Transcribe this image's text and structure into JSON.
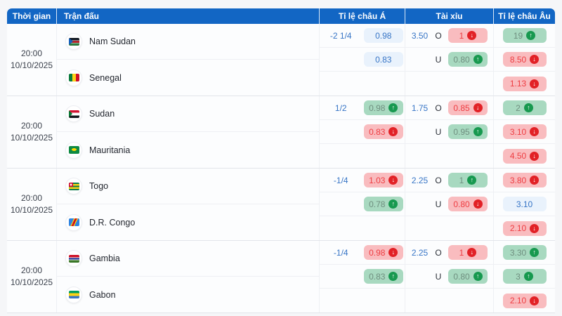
{
  "header": {
    "time": "Thời gian",
    "match": "Trận đấu",
    "asian": "Tỉ lệ châu Á",
    "over_under": "Tài xỉu",
    "euro": "Tỉ lệ châu Âu"
  },
  "labels": {
    "over": "O",
    "under": "U"
  },
  "colors": {
    "header_bg": "#1266c4",
    "odds_text_blue": "#3775c6",
    "badge_blue_bg": "#e9f2fc",
    "badge_green_bg": "#a8d9c0",
    "badge_red_bg": "#f9bcbf",
    "trend_up_circle": "#17994f",
    "trend_down_circle": "#e22126"
  },
  "matches": [
    {
      "time_line1": "20:00",
      "time_line2": "10/10/2025",
      "home": {
        "name": "Nam Sudan",
        "flag": "ssd"
      },
      "away": {
        "name": "Senegal",
        "flag": "sen"
      },
      "asian": {
        "handicap": "-2 1/4",
        "row1": {
          "value": "0.98",
          "state": "blue"
        },
        "row2": {
          "value": "0.83",
          "state": "blue"
        }
      },
      "over_under": {
        "total": "3.50",
        "over": {
          "value": "1",
          "state": "red-down"
        },
        "under": {
          "value": "0.80",
          "state": "green-up"
        }
      },
      "euro": {
        "row1": {
          "value": "19",
          "state": "green-up"
        },
        "row2": {
          "value": "8.50",
          "state": "red-down"
        },
        "row3": {
          "value": "1.13",
          "state": "red-down"
        }
      }
    },
    {
      "time_line1": "20:00",
      "time_line2": "10/10/2025",
      "home": {
        "name": "Sudan",
        "flag": "sdn"
      },
      "away": {
        "name": "Mauritania",
        "flag": "mrt"
      },
      "asian": {
        "handicap": "1/2",
        "row1": {
          "value": "0.98",
          "state": "green-up"
        },
        "row2": {
          "value": "0.83",
          "state": "red-down"
        }
      },
      "over_under": {
        "total": "1.75",
        "over": {
          "value": "0.85",
          "state": "red-down"
        },
        "under": {
          "value": "0.95",
          "state": "green-up"
        }
      },
      "euro": {
        "row1": {
          "value": "2",
          "state": "green-up"
        },
        "row2": {
          "value": "3.10",
          "state": "red-down"
        },
        "row3": {
          "value": "4.50",
          "state": "red-down"
        }
      }
    },
    {
      "time_line1": "20:00",
      "time_line2": "10/10/2025",
      "home": {
        "name": "Togo",
        "flag": "tgo"
      },
      "away": {
        "name": "D.R. Congo",
        "flag": "cod"
      },
      "asian": {
        "handicap": "-1/4",
        "row1": {
          "value": "1.03",
          "state": "red-down"
        },
        "row2": {
          "value": "0.78",
          "state": "green-up"
        }
      },
      "over_under": {
        "total": "2.25",
        "over": {
          "value": "1",
          "state": "green-up"
        },
        "under": {
          "value": "0.80",
          "state": "red-down"
        }
      },
      "euro": {
        "row1": {
          "value": "3.80",
          "state": "red-down"
        },
        "row2": {
          "value": "3.10",
          "state": "blue"
        },
        "row3": {
          "value": "2.10",
          "state": "red-down"
        }
      }
    },
    {
      "time_line1": "20:00",
      "time_line2": "10/10/2025",
      "home": {
        "name": "Gambia",
        "flag": "gmb"
      },
      "away": {
        "name": "Gabon",
        "flag": "gab"
      },
      "asian": {
        "handicap": "-1/4",
        "row1": {
          "value": "0.98",
          "state": "red-down"
        },
        "row2": {
          "value": "0.83",
          "state": "green-up"
        }
      },
      "over_under": {
        "total": "2.25",
        "over": {
          "value": "1",
          "state": "red-down"
        },
        "under": {
          "value": "0.80",
          "state": "green-up"
        }
      },
      "euro": {
        "row1": {
          "value": "3.30",
          "state": "green-up"
        },
        "row2": {
          "value": "3",
          "state": "green-up"
        },
        "row3": {
          "value": "2.10",
          "state": "red-down"
        }
      }
    }
  ]
}
